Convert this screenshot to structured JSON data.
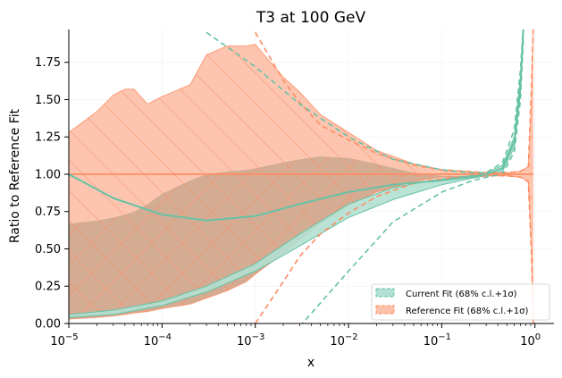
{
  "chart_data": {
    "type": "area",
    "title": "T3 at 100 GeV",
    "xlabel": "x",
    "ylabel": "Ratio to Reference Fit",
    "xscale": "log",
    "xlim": [
      1e-05,
      1.6
    ],
    "ylim": [
      0,
      1.97
    ],
    "grid": "on (faint)",
    "legend_position": "bottom-right",
    "x_ticks": [
      {
        "value": 1e-05,
        "base": "10",
        "exp": "−5"
      },
      {
        "value": 0.0001,
        "base": "10",
        "exp": "−4"
      },
      {
        "value": 0.001,
        "base": "10",
        "exp": "−3"
      },
      {
        "value": 0.01,
        "base": "10",
        "exp": "−2"
      },
      {
        "value": 0.1,
        "base": "10",
        "exp": "−1"
      },
      {
        "value": 1,
        "base": "10",
        "exp": "0"
      }
    ],
    "y_ticks": [
      {
        "value": 0.0,
        "label": "0.00"
      },
      {
        "value": 0.25,
        "label": "0.25"
      },
      {
        "value": 0.5,
        "label": "0.50"
      },
      {
        "value": 0.75,
        "label": "0.75"
      },
      {
        "value": 1.0,
        "label": "1.00"
      },
      {
        "value": 1.25,
        "label": "1.25"
      },
      {
        "value": 1.5,
        "label": "1.50"
      },
      {
        "value": 1.75,
        "label": "1.75"
      }
    ],
    "colors": {
      "current": "#66c2a5",
      "current_fill": "#b2e0d2",
      "reference": "#fc8d62",
      "reference_fill": "#fdc2ac",
      "overlap_fill": "#d2a88e"
    },
    "series": [
      {
        "name": "Current Fit (68% c.l.+1σ)",
        "x": [
          1e-05,
          3e-05,
          0.0001,
          0.0003,
          0.001,
          0.003,
          0.01,
          0.03,
          0.1,
          0.2,
          0.3,
          0.45,
          0.6,
          0.7,
          0.75
        ],
        "upper": [
          0.06,
          0.09,
          0.15,
          0.25,
          0.4,
          0.6,
          0.8,
          0.91,
          0.97,
          0.99,
          1.01,
          1.06,
          1.25,
          1.65,
          2.0
        ],
        "center": [
          1.0,
          0.84,
          0.73,
          0.69,
          0.72,
          0.8,
          0.88,
          0.93,
          0.96,
          0.98,
          1.0,
          1.04,
          1.22,
          1.6,
          1.97
        ],
        "lower": [
          0.04,
          0.06,
          0.12,
          0.21,
          0.35,
          0.52,
          0.71,
          0.83,
          0.93,
          0.97,
          0.99,
          1.02,
          1.18,
          1.55,
          1.94
        ],
        "dashed_upper": [
          null,
          null,
          null,
          1.95,
          1.72,
          1.47,
          1.25,
          1.1,
          1.03,
          1.01,
          1.01,
          1.08,
          1.3,
          1.7,
          2.0
        ],
        "dashed_lower": [
          null,
          null,
          null,
          null,
          null,
          -0.02,
          0.35,
          0.68,
          0.88,
          0.95,
          0.98,
          1.0,
          1.15,
          1.5,
          1.9
        ]
      },
      {
        "name": "Reference Fit (68% c.l.+1σ)",
        "x": [
          1e-05,
          2e-05,
          3e-05,
          4e-05,
          5e-05,
          7e-05,
          0.0001,
          0.0002,
          0.0003,
          0.0005,
          0.0008,
          0.001,
          0.002,
          0.003,
          0.005,
          0.01,
          0.02,
          0.05,
          0.1,
          0.3,
          0.5,
          0.7,
          0.85,
          0.92,
          0.96
        ],
        "upper": [
          1.28,
          1.42,
          1.53,
          1.57,
          1.57,
          1.47,
          1.52,
          1.6,
          1.8,
          1.86,
          1.86,
          1.87,
          1.65,
          1.55,
          1.4,
          1.28,
          1.16,
          1.07,
          1.03,
          1.01,
          1.01,
          1.02,
          1.05,
          1.5,
          2.0
        ],
        "center": [
          1.0,
          1.0,
          1.0,
          1.0,
          1.0,
          1.0,
          1.0,
          1.0,
          1.0,
          1.0,
          1.0,
          1.0,
          1.0,
          1.0,
          1.0,
          1.0,
          1.0,
          1.0,
          1.0,
          1.0,
          1.0,
          1.0,
          1.0,
          1.0,
          1.0
        ],
        "lower": [
          0.67,
          0.69,
          0.71,
          0.73,
          0.75,
          0.8,
          0.87,
          0.96,
          1.0,
          1.02,
          1.03,
          1.04,
          1.08,
          1.1,
          1.12,
          1.11,
          1.07,
          1.01,
          0.99,
          0.99,
          0.99,
          0.98,
          0.95,
          0.5,
          0.0
        ],
        "lower2": [
          0.03,
          0.04,
          0.05,
          0.06,
          0.07,
          0.08,
          0.1,
          0.13,
          0.17,
          0.22,
          0.28,
          0.33,
          0.47,
          0.56,
          0.67,
          0.79,
          0.88,
          0.95,
          0.98,
          0.99,
          0.99,
          0.98,
          0.95,
          0.5,
          0.0
        ],
        "dashed_upper": [
          null,
          null,
          null,
          null,
          null,
          null,
          null,
          null,
          null,
          null,
          null,
          1.95,
          1.63,
          1.48,
          1.33,
          1.23,
          1.14,
          1.06,
          1.03,
          1.01,
          1.01,
          1.02,
          1.05,
          1.6,
          2.0
        ],
        "dashed_lower": [
          null,
          null,
          null,
          null,
          null,
          null,
          null,
          null,
          null,
          null,
          null,
          0.0,
          0.28,
          0.45,
          0.6,
          0.74,
          0.85,
          0.94,
          0.97,
          0.99,
          0.99,
          0.98,
          0.95,
          0.45,
          0.0
        ]
      }
    ]
  }
}
